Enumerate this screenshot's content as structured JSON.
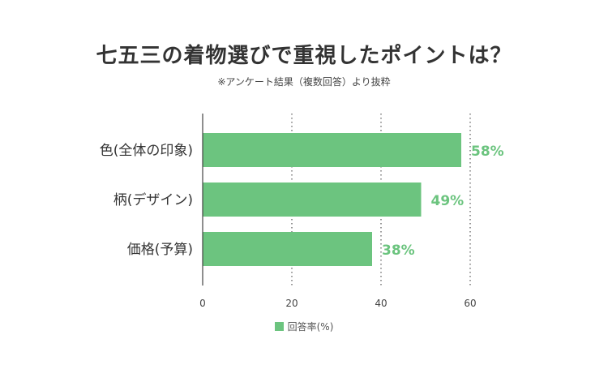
{
  "chart_data": {
    "type": "bar",
    "orientation": "horizontal",
    "title": "七五三の着物選びで重視したポイントは？",
    "subtitle": "※アンケート結果（複数回答）より抜粋",
    "categories": [
      "色(全体の印象)",
      "柄(デザイン)",
      "価格(予算)"
    ],
    "series": [
      {
        "name": "回答率(%)",
        "values": [
          58,
          49,
          38
        ],
        "labels": [
          "58%",
          "49%",
          "38%"
        ]
      }
    ],
    "xlim": [
      0,
      60
    ],
    "xticks": [
      0,
      20,
      40,
      60
    ],
    "grid": "vertical dotted",
    "legend": "bottom-center",
    "colors": {
      "bar": "#6cc47f",
      "value_label": "#6cc47f"
    }
  }
}
